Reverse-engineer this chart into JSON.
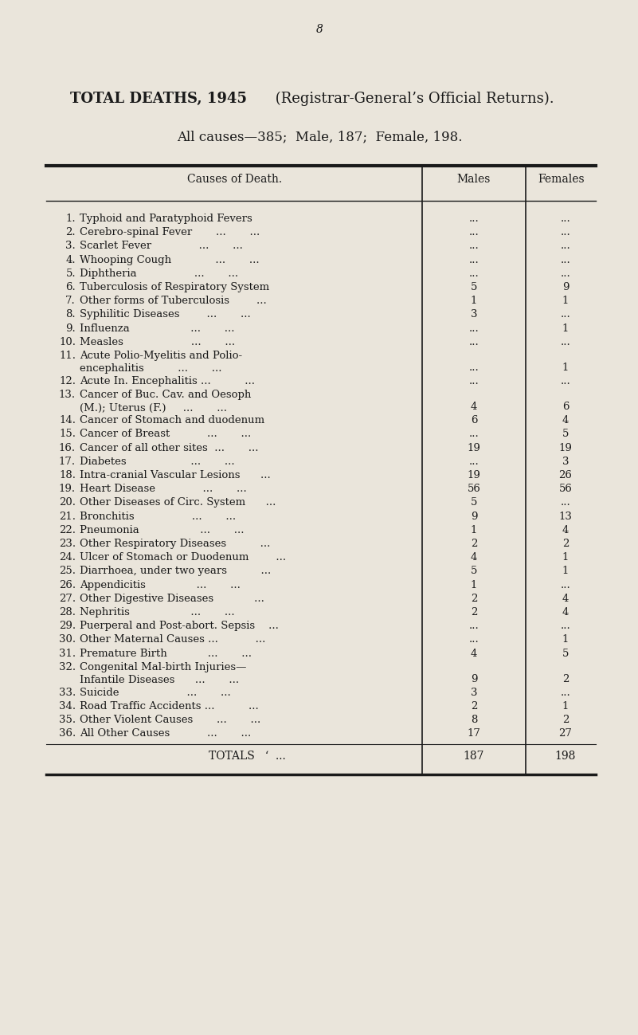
{
  "page_number": "8",
  "title_bold": "TOTAL DEATHS, 1945",
  "title_normal": " (Registrar-General’s Official Returns).",
  "subtitle": "All causes—385;  Male, 187;  Female, 198.",
  "col_header_cause": "Causes of Death.",
  "col_header_males": "Males",
  "col_header_females": "Females",
  "background_color": "#EAE5DB",
  "text_color": "#1a1a1a",
  "rows": [
    {
      "num": "1.",
      "cause": "Typhoid and Paratyphoid Fevers",
      "male": "...",
      "female": "...",
      "multiline": false
    },
    {
      "num": "2.",
      "cause": "Cerebro-spinal Fever       ...       ...",
      "male": "...",
      "female": "...",
      "multiline": false
    },
    {
      "num": "3.",
      "cause": "Scarlet Fever              ...       ...",
      "male": "...",
      "female": "...",
      "multiline": false
    },
    {
      "num": "4.",
      "cause": "Whooping Cough             ...       ...",
      "male": "...",
      "female": "...",
      "multiline": false
    },
    {
      "num": "5.",
      "cause": "Diphtheria                 ...       ...",
      "male": "...",
      "female": "...",
      "multiline": false
    },
    {
      "num": "6.",
      "cause": "Tuberculosis of Respiratory System",
      "male": "5",
      "female": "9",
      "multiline": false
    },
    {
      "num": "7.",
      "cause": "Other forms of Tuberculosis        ...",
      "male": "1",
      "female": "1",
      "multiline": false
    },
    {
      "num": "8.",
      "cause": "Syphilitic Diseases        ...       ...",
      "male": "3",
      "female": "...",
      "multiline": false
    },
    {
      "num": "9.",
      "cause": "Influenza                  ...       ...",
      "male": "...",
      "female": "1",
      "multiline": false
    },
    {
      "num": "10.",
      "cause": "Measles                    ...       ...",
      "male": "...",
      "female": "...",
      "multiline": false
    },
    {
      "num": "11.",
      "cause": "Acute Polio-Myelitis and Polio-",
      "male": "...",
      "female": "1",
      "multiline": true,
      "cause2": "    encephalitis          ...       ..."
    },
    {
      "num": "12.",
      "cause": "Acute In. Encephalitis ...          ...",
      "male": "...",
      "female": "...",
      "multiline": false
    },
    {
      "num": "13.",
      "cause": "Cancer of Buc. Cav. and Oesoph",
      "male": "4",
      "female": "6",
      "multiline": true,
      "cause2": "    (M.); Uterus (F.)     ...       ..."
    },
    {
      "num": "14.",
      "cause": "Cancer of Stomach and duodenum",
      "male": "6",
      "female": "4",
      "multiline": false
    },
    {
      "num": "15.",
      "cause": "Cancer of Breast           ...       ...",
      "male": "...",
      "female": "5",
      "multiline": false
    },
    {
      "num": "16.",
      "cause": "Cancer of all other sites  ...       ...",
      "male": "19",
      "female": "19",
      "multiline": false
    },
    {
      "num": "17.",
      "cause": "Diabetes                   ...       ...",
      "male": "...",
      "female": "3",
      "multiline": false
    },
    {
      "num": "18.",
      "cause": "Intra-cranial Vascular Lesions      ...",
      "male": "19",
      "female": "26",
      "multiline": false
    },
    {
      "num": "19.",
      "cause": "Heart Disease              ...       ...",
      "male": "56",
      "female": "56",
      "multiline": false
    },
    {
      "num": "20.",
      "cause": "Other Diseases of Circ. System      ...",
      "male": "5",
      "female": "...",
      "multiline": false
    },
    {
      "num": "21.",
      "cause": "Bronchitis                 ...       ...",
      "male": "9",
      "female": "13",
      "multiline": false
    },
    {
      "num": "22.",
      "cause": "Pneumonia                  ...       ...",
      "male": "1",
      "female": "4",
      "multiline": false
    },
    {
      "num": "23.",
      "cause": "Other Respiratory Diseases          ...",
      "male": "2",
      "female": "2",
      "multiline": false
    },
    {
      "num": "24.",
      "cause": "Ulcer of Stomach or Duodenum        ...",
      "male": "4",
      "female": "1",
      "multiline": false
    },
    {
      "num": "25.",
      "cause": "Diarrhoea, under two years          ...",
      "male": "5",
      "female": "1",
      "multiline": false
    },
    {
      "num": "26.",
      "cause": "Appendicitis               ...       ...",
      "male": "1",
      "female": "...",
      "multiline": false
    },
    {
      "num": "27.",
      "cause": "Other Digestive Diseases            ...",
      "male": "2",
      "female": "4",
      "multiline": false
    },
    {
      "num": "28.",
      "cause": "Nephritis                  ...       ...",
      "male": "2",
      "female": "4",
      "multiline": false
    },
    {
      "num": "29.",
      "cause": "Puerperal and Post-abort. Sepsis    ...",
      "male": "...",
      "female": "...",
      "multiline": false
    },
    {
      "num": "30.",
      "cause": "Other Maternal Causes ...           ...",
      "male": "...",
      "female": "1",
      "multiline": false
    },
    {
      "num": "31.",
      "cause": "Premature Birth            ...       ...",
      "male": "4",
      "female": "5",
      "multiline": false
    },
    {
      "num": "32.",
      "cause": "Congenital Mal-birth Injuries—",
      "male": "9",
      "female": "2",
      "multiline": true,
      "cause2": "    Infantile Diseases      ...       ..."
    },
    {
      "num": "33.",
      "cause": "Suicide                    ...       ...",
      "male": "3",
      "female": "...",
      "multiline": false
    },
    {
      "num": "34.",
      "cause": "Road Traffic Accidents ...          ...",
      "male": "2",
      "female": "1",
      "multiline": false
    },
    {
      "num": "35.",
      "cause": "Other Violent Causes       ...       ...",
      "male": "8",
      "female": "2",
      "multiline": false
    },
    {
      "num": "36.",
      "cause": "All Other Causes           ...       ...",
      "male": "17",
      "female": "27",
      "multiline": false
    }
  ],
  "totals_label": "TOTALS",
  "totals_dots": "    ‘   ...",
  "totals_male": "187",
  "totals_female": "198"
}
